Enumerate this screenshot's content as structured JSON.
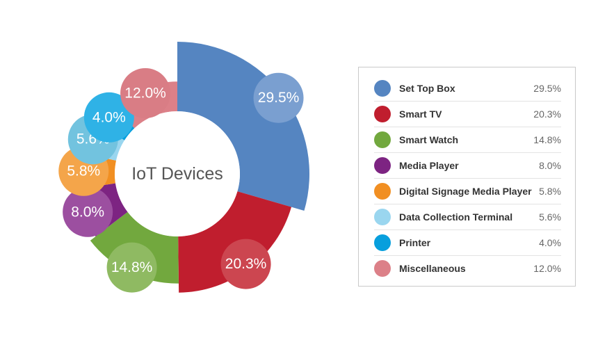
{
  "chart_data": {
    "type": "pie",
    "center_label": "IoT Devices",
    "slices": [
      {
        "label": "Set Top Box",
        "value": 29.5,
        "display": "29.5%",
        "color": "#5585c1",
        "bubble_color": "#7a9fd0"
      },
      {
        "label": "Smart TV",
        "value": 20.3,
        "display": "20.3%",
        "color": "#c01e2e",
        "bubble_color": "#cc4650"
      },
      {
        "label": "Smart Watch",
        "value": 14.8,
        "display": "14.8%",
        "color": "#72a83e",
        "bubble_color": "#8fba62"
      },
      {
        "label": "Media Player",
        "value": 8.0,
        "display": "8.0%",
        "color": "#7d2482",
        "bubble_color": "#9c4fa0"
      },
      {
        "label": "Digital Signage Media Player",
        "value": 5.8,
        "display": "5.8%",
        "color": "#f18f22",
        "bubble_color": "#f4a54a"
      },
      {
        "label": "Data Collection Terminal",
        "value": 5.6,
        "display": "5.6%",
        "color": "#9ad6ef",
        "bubble_color": "#72c3df"
      },
      {
        "label": "Printer",
        "value": 4.0,
        "display": "4.0%",
        "color": "#079fdd",
        "bubble_color": "#2fb2e6"
      },
      {
        "label": "Miscellaneous",
        "value": 12.0,
        "display": "12.0%",
        "color": "#dc8088",
        "bubble_color": "#d97d85"
      }
    ],
    "legend_position": "right"
  }
}
